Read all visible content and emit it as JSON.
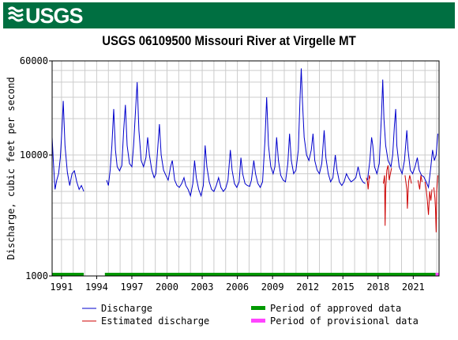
{
  "banner": {
    "logo_text": "USGS",
    "color": "#006f41"
  },
  "chart_data": {
    "type": "line",
    "title": "USGS 06109500 Missouri River at Virgelle MT",
    "ylabel": "Discharge, cubic feet per second",
    "xlabel": "",
    "y_scale": "log",
    "ylim": [
      1000,
      60000
    ],
    "xlim": [
      1990.2,
      2023.2
    ],
    "y_ticks": [
      {
        "value": 1000,
        "label": "1000"
      },
      {
        "value": 10000,
        "label": "10000"
      },
      {
        "value": 60000,
        "label": "60000"
      }
    ],
    "x_ticks": [
      {
        "value": 1991,
        "label": "1991"
      },
      {
        "value": 1994,
        "label": "1994"
      },
      {
        "value": 1997,
        "label": "1997"
      },
      {
        "value": 2000,
        "label": "2000"
      },
      {
        "value": 2003,
        "label": "2003"
      },
      {
        "value": 2006,
        "label": "2006"
      },
      {
        "value": 2009,
        "label": "2009"
      },
      {
        "value": 2012,
        "label": "2012"
      },
      {
        "value": 2015,
        "label": "2015"
      },
      {
        "value": 2018,
        "label": "2018"
      },
      {
        "value": 2021,
        "label": "2021"
      }
    ],
    "grid": true,
    "series": [
      {
        "name": "Discharge",
        "color": "#0000cc",
        "segments": [
          [
            [
              1990.2,
              14000
            ],
            [
              1990.3,
              9000
            ],
            [
              1990.45,
              5200
            ],
            [
              1990.6,
              6200
            ],
            [
              1990.75,
              7000
            ],
            [
              1990.9,
              9500
            ],
            [
              1991.05,
              17000
            ],
            [
              1991.15,
              28000
            ],
            [
              1991.3,
              12000
            ],
            [
              1991.5,
              7200
            ],
            [
              1991.7,
              5600
            ],
            [
              1991.9,
              7000
            ],
            [
              1992.1,
              7400
            ],
            [
              1992.3,
              6000
            ],
            [
              1992.5,
              5200
            ],
            [
              1992.7,
              5600
            ],
            [
              1992.9,
              5000
            ]
          ],
          [
            [
              1994.85,
              6200
            ],
            [
              1995.0,
              5600
            ],
            [
              1995.15,
              7500
            ],
            [
              1995.3,
              12000
            ],
            [
              1995.45,
              24000
            ],
            [
              1995.6,
              11000
            ],
            [
              1995.75,
              8000
            ],
            [
              1995.95,
              7400
            ],
            [
              1996.15,
              8200
            ],
            [
              1996.3,
              16000
            ],
            [
              1996.45,
              26000
            ],
            [
              1996.6,
              12000
            ],
            [
              1996.8,
              8500
            ],
            [
              1997.0,
              8000
            ],
            [
              1997.15,
              12000
            ],
            [
              1997.3,
              22000
            ],
            [
              1997.45,
              40000
            ],
            [
              1997.6,
              16000
            ],
            [
              1997.8,
              9000
            ],
            [
              1998.0,
              8000
            ],
            [
              1998.2,
              9500
            ],
            [
              1998.35,
              14000
            ],
            [
              1998.5,
              10000
            ],
            [
              1998.7,
              7500
            ],
            [
              1998.9,
              6500
            ],
            [
              1999.05,
              7000
            ],
            [
              1999.2,
              11000
            ],
            [
              1999.35,
              18000
            ],
            [
              1999.5,
              10000
            ],
            [
              1999.7,
              7500
            ],
            [
              1999.9,
              6800
            ],
            [
              2000.1,
              6200
            ],
            [
              2000.3,
              8000
            ],
            [
              2000.45,
              9000
            ],
            [
              2000.65,
              6200
            ],
            [
              2000.85,
              5600
            ],
            [
              2001.05,
              5400
            ],
            [
              2001.25,
              5800
            ],
            [
              2001.45,
              6500
            ],
            [
              2001.6,
              5600
            ],
            [
              2001.8,
              5200
            ],
            [
              2002.0,
              4600
            ],
            [
              2002.2,
              5800
            ],
            [
              2002.35,
              9000
            ],
            [
              2002.5,
              6500
            ],
            [
              2002.7,
              5200
            ],
            [
              2002.9,
              4600
            ],
            [
              2003.1,
              5600
            ],
            [
              2003.25,
              12000
            ],
            [
              2003.4,
              8000
            ],
            [
              2003.6,
              6000
            ],
            [
              2003.8,
              5200
            ],
            [
              2004.0,
              5000
            ],
            [
              2004.2,
              5600
            ],
            [
              2004.4,
              6500
            ],
            [
              2004.6,
              5400
            ],
            [
              2004.8,
              5000
            ],
            [
              2005.0,
              5300
            ],
            [
              2005.2,
              6200
            ],
            [
              2005.4,
              11000
            ],
            [
              2005.55,
              7500
            ],
            [
              2005.75,
              5800
            ],
            [
              2005.95,
              5400
            ],
            [
              2006.15,
              6000
            ],
            [
              2006.3,
              9500
            ],
            [
              2006.45,
              7000
            ],
            [
              2006.65,
              5800
            ],
            [
              2006.85,
              5600
            ],
            [
              2007.05,
              5500
            ],
            [
              2007.2,
              6200
            ],
            [
              2007.4,
              9000
            ],
            [
              2007.55,
              7000
            ],
            [
              2007.75,
              5800
            ],
            [
              2007.95,
              5400
            ],
            [
              2008.15,
              6000
            ],
            [
              2008.35,
              13000
            ],
            [
              2008.5,
              30000
            ],
            [
              2008.65,
              12000
            ],
            [
              2008.85,
              8000
            ],
            [
              2009.05,
              7000
            ],
            [
              2009.2,
              8000
            ],
            [
              2009.35,
              14000
            ],
            [
              2009.5,
              9000
            ],
            [
              2009.7,
              6800
            ],
            [
              2009.9,
              6200
            ],
            [
              2010.1,
              6000
            ],
            [
              2010.3,
              8500
            ],
            [
              2010.45,
              15000
            ],
            [
              2010.6,
              9000
            ],
            [
              2010.8,
              7000
            ],
            [
              2011.0,
              7500
            ],
            [
              2011.2,
              11000
            ],
            [
              2011.35,
              30000
            ],
            [
              2011.45,
              52000
            ],
            [
              2011.55,
              28000
            ],
            [
              2011.7,
              14000
            ],
            [
              2011.9,
              10000
            ],
            [
              2012.1,
              9000
            ],
            [
              2012.3,
              11000
            ],
            [
              2012.45,
              15000
            ],
            [
              2012.6,
              9000
            ],
            [
              2012.8,
              7500
            ],
            [
              2013.0,
              7000
            ],
            [
              2013.2,
              8500
            ],
            [
              2013.4,
              16000
            ],
            [
              2013.55,
              9500
            ],
            [
              2013.75,
              7000
            ],
            [
              2013.95,
              6000
            ],
            [
              2014.15,
              6500
            ],
            [
              2014.35,
              10000
            ],
            [
              2014.5,
              7500
            ],
            [
              2014.7,
              6000
            ],
            [
              2014.9,
              5600
            ],
            [
              2015.1,
              6000
            ],
            [
              2015.3,
              7000
            ],
            [
              2015.5,
              6400
            ],
            [
              2015.7,
              6000
            ],
            [
              2015.9,
              6200
            ],
            [
              2016.1,
              6500
            ],
            [
              2016.3,
              8000
            ],
            [
              2016.5,
              6500
            ],
            [
              2016.7,
              6000
            ],
            [
              2016.9,
              5800
            ]
          ],
          [
            [
              2017.1,
              6200
            ],
            [
              2017.3,
              9000
            ],
            [
              2017.45,
              14000
            ],
            [
              2017.55,
              12000
            ],
            [
              2017.7,
              8000
            ],
            [
              2017.9,
              7000
            ],
            [
              2018.1,
              8500
            ],
            [
              2018.3,
              22000
            ],
            [
              2018.4,
              42000
            ],
            [
              2018.5,
              20000
            ],
            [
              2018.65,
              12000
            ],
            [
              2018.85,
              9000
            ],
            [
              2019.1,
              8000
            ],
            [
              2019.25,
              10000
            ],
            [
              2019.4,
              18000
            ],
            [
              2019.5,
              24000
            ],
            [
              2019.6,
              12000
            ],
            [
              2019.8,
              8000
            ],
            [
              2020.05,
              7000
            ],
            [
              2020.25,
              9000
            ],
            [
              2020.45,
              16000
            ],
            [
              2020.55,
              11000
            ],
            [
              2020.75,
              7500
            ],
            [
              2020.95,
              7000
            ],
            [
              2021.15,
              8000
            ],
            [
              2021.35,
              9500
            ],
            [
              2021.5,
              7500
            ],
            [
              2021.7,
              6800
            ],
            [
              2021.9,
              6600
            ],
            [
              2022.1,
              6000
            ],
            [
              2022.3,
              5400
            ],
            [
              2022.5,
              8000
            ],
            [
              2022.65,
              11000
            ],
            [
              2022.8,
              9000
            ],
            [
              2022.95,
              10000
            ],
            [
              2023.1,
              15000
            ]
          ]
        ]
      },
      {
        "name": "Estimated discharge",
        "color": "#cc0000",
        "segments": [
          [
            [
              2017.0,
              6500
            ],
            [
              2017.1,
              6000
            ],
            [
              2017.15,
              5200
            ],
            [
              2017.25,
              6800
            ],
            [
              2017.3,
              6400
            ]
          ],
          [
            [
              2018.45,
              5800
            ],
            [
              2018.55,
              6800
            ],
            [
              2018.6,
              2600
            ],
            [
              2018.65,
              5200
            ],
            [
              2018.75,
              7500
            ],
            [
              2018.85,
              8200
            ],
            [
              2018.95,
              6200
            ],
            [
              2019.05,
              7000
            ],
            [
              2019.15,
              7800
            ]
          ],
          [
            [
              2020.3,
              6800
            ],
            [
              2020.45,
              5200
            ],
            [
              2020.5,
              3600
            ],
            [
              2020.6,
              6000
            ],
            [
              2020.7,
              6800
            ],
            [
              2020.85,
              5800
            ]
          ],
          [
            [
              2021.4,
              6200
            ],
            [
              2021.55,
              5200
            ],
            [
              2021.65,
              6800
            ],
            [
              2021.75,
              6000
            ]
          ],
          [
            [
              2022.0,
              6000
            ],
            [
              2022.1,
              5200
            ],
            [
              2022.2,
              4200
            ],
            [
              2022.3,
              3200
            ],
            [
              2022.4,
              5000
            ],
            [
              2022.5,
              4200
            ],
            [
              2022.6,
              5200
            ]
          ],
          [
            [
              2022.75,
              5400
            ],
            [
              2022.85,
              4400
            ],
            [
              2022.9,
              3600
            ],
            [
              2022.95,
              2300
            ],
            [
              2023.0,
              5000
            ],
            [
              2023.1,
              6800
            ]
          ]
        ]
      }
    ],
    "approval_bars": [
      {
        "name": "Period of approved data",
        "color": "#009900",
        "ranges": [
          [
            1990.2,
            1992.9
          ],
          [
            1994.7,
            2022.9
          ]
        ]
      },
      {
        "name": "Period of provisional data",
        "color": "#ff44ff",
        "ranges": [
          [
            2022.9,
            2023.2
          ]
        ]
      }
    ],
    "legend": {
      "position": "bottom",
      "entries": [
        {
          "label": "Discharge",
          "type": "line",
          "color": "#0000cc"
        },
        {
          "label": "Estimated discharge",
          "type": "line",
          "color": "#cc0000"
        },
        {
          "label": "Period of approved data",
          "type": "bar",
          "color": "#009900"
        },
        {
          "label": "Period of provisional data",
          "type": "bar",
          "color": "#ff44ff"
        }
      ]
    }
  }
}
